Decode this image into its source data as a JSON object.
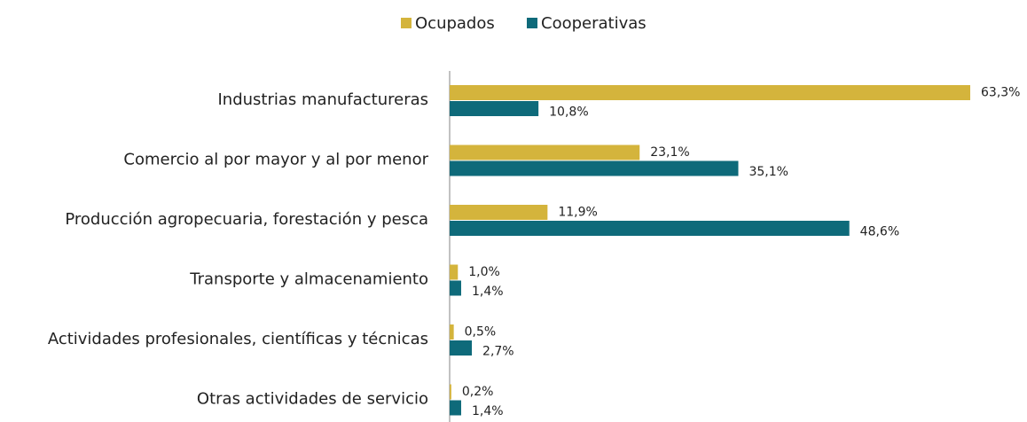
{
  "chart_data": {
    "type": "bar",
    "orientation": "horizontal",
    "categories": [
      "Industrias manufactureras",
      "Comercio al por mayor y al por menor",
      "Producción agropecuaria, forestación y pesca",
      "Transporte y almacenamiento",
      "Actividades profesionales, científicas y técnicas",
      "Otras actividades de servicio"
    ],
    "series": [
      {
        "name": "Ocupados",
        "color": "#d4b43c",
        "values": [
          63.3,
          23.1,
          11.9,
          1.0,
          0.5,
          0.2
        ],
        "value_labels": [
          "63,3%",
          "23,1%",
          "11,9%",
          "1,0%",
          "0,5%",
          "0,2%"
        ]
      },
      {
        "name": "Cooperativas",
        "color": "#0e6a7a",
        "values": [
          10.8,
          35.1,
          48.6,
          1.4,
          2.7,
          1.4
        ],
        "value_labels": [
          "10,8%",
          "35,1%",
          "48,6%",
          "1,4%",
          "2,7%",
          "1,4%"
        ]
      }
    ],
    "legend": "top"
  }
}
